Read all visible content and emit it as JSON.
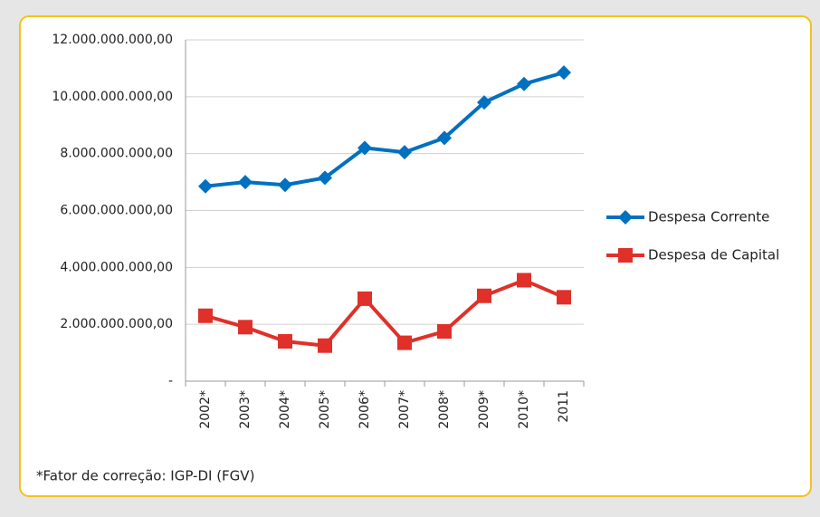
{
  "chart_data": {
    "type": "line",
    "categories": [
      "2002*",
      "2003*",
      "2004*",
      "2005*",
      "2006*",
      "2007*",
      "2008*",
      "2009*",
      "2010*",
      "2011"
    ],
    "series": [
      {
        "name": "Despesa Corrente",
        "color": "#0070c0",
        "marker": "diamond",
        "values": [
          6850000000,
          7000000000,
          6900000000,
          7150000000,
          8200000000,
          8050000000,
          8550000000,
          9800000000,
          10450000000,
          10850000000
        ]
      },
      {
        "name": "Despesa de Capital",
        "color": "#e0302a",
        "marker": "square",
        "values": [
          2300000000,
          1900000000,
          1400000000,
          1250000000,
          2900000000,
          1350000000,
          1750000000,
          3000000000,
          3550000000,
          2950000000
        ]
      }
    ],
    "ylim": [
      0,
      12000000000
    ],
    "yticks": [
      {
        "value": 0,
        "label": "-"
      },
      {
        "value": 2000000000,
        "label": "2.000.000.000,00"
      },
      {
        "value": 4000000000,
        "label": "4.000.000.000,00"
      },
      {
        "value": 6000000000,
        "label": "6.000.000.000,00"
      },
      {
        "value": 8000000000,
        "label": "8.000.000.000,00"
      },
      {
        "value": 10000000000,
        "label": "10.000.000.000,00"
      },
      {
        "value": 12000000000,
        "label": "12.000.000.000,00"
      }
    ],
    "grid": true,
    "legend": "right",
    "note": "*Fator de correção: IGP-DI (FGV)"
  }
}
